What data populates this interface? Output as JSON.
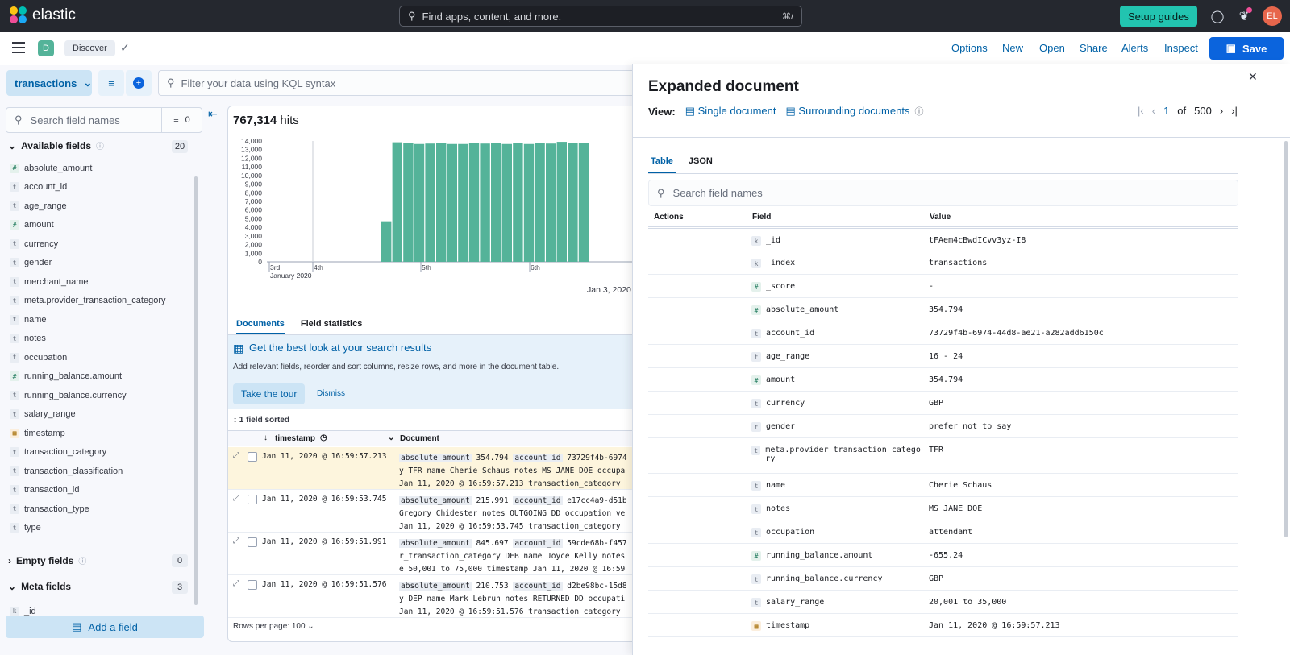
{
  "topbar": {
    "brand": "elastic",
    "search_placeholder": "Find apps, content, and more.",
    "search_shortcut": "⌘/",
    "setup_guides": "Setup guides",
    "avatar": "EL"
  },
  "appbar": {
    "space_badge": "D",
    "breadcrumb": "Discover",
    "menu": [
      "Options",
      "New",
      "Open",
      "Share",
      "Alerts",
      "Inspect"
    ],
    "save": "Save"
  },
  "query": {
    "data_view": "transactions",
    "kql_placeholder": "Filter your data using KQL syntax"
  },
  "sidebar": {
    "search_placeholder": "Search field names",
    "filter_count": "0",
    "available_label": "Available fields",
    "available_count": "20",
    "available_fields": [
      {
        "name": "absolute_amount",
        "type": "#"
      },
      {
        "name": "account_id",
        "type": "t"
      },
      {
        "name": "age_range",
        "type": "t"
      },
      {
        "name": "amount",
        "type": "#"
      },
      {
        "name": "currency",
        "type": "t"
      },
      {
        "name": "gender",
        "type": "t"
      },
      {
        "name": "merchant_name",
        "type": "t"
      },
      {
        "name": "meta.provider_transaction_category",
        "type": "t"
      },
      {
        "name": "name",
        "type": "t"
      },
      {
        "name": "notes",
        "type": "t"
      },
      {
        "name": "occupation",
        "type": "t"
      },
      {
        "name": "running_balance.amount",
        "type": "#"
      },
      {
        "name": "running_balance.currency",
        "type": "t"
      },
      {
        "name": "salary_range",
        "type": "t"
      },
      {
        "name": "timestamp",
        "type": "date"
      },
      {
        "name": "transaction_category",
        "type": "t"
      },
      {
        "name": "transaction_classification",
        "type": "t"
      },
      {
        "name": "transaction_id",
        "type": "t"
      },
      {
        "name": "transaction_type",
        "type": "t"
      },
      {
        "name": "type",
        "type": "t"
      }
    ],
    "empty_label": "Empty fields",
    "empty_count": "0",
    "meta_label": "Meta fields",
    "meta_count": "3",
    "meta_first": "_id",
    "add_field": "Add a field"
  },
  "results": {
    "hits": "767,314",
    "hits_label": "hits",
    "tab_documents": "Documents",
    "tab_stats": "Field statistics",
    "callout_title": "Get the best look at your search results",
    "callout_desc": "Add relevant fields, reorder and sort columns, resize rows, and more in the document table.",
    "take_tour": "Take the tour",
    "dismiss": "Dismiss",
    "sorted": "1 field sorted",
    "col_timestamp": "timestamp",
    "col_document": "Document",
    "rows": [
      {
        "ts": "Jan 11, 2020 @ 16:59:57.213",
        "l1": [
          [
            "absolute_amount",
            "354.794"
          ],
          [
            "account_id",
            "73729f4b-6974"
          ]
        ],
        "l2": "y TFR name Cherie Schaus notes MS JANE DOE occupa",
        "l3": "Jan 11, 2020 @ 16:59:57.213 transaction_category"
      },
      {
        "ts": "Jan 11, 2020 @ 16:59:53.745",
        "l1": [
          [
            "absolute_amount",
            "215.991"
          ],
          [
            "account_id",
            "e17cc4a9-d51b"
          ]
        ],
        "l2": "Gregory Chidester notes OUTGOING DD occupation ve",
        "l3": "Jan 11, 2020 @ 16:59:53.745 transaction_category"
      },
      {
        "ts": "Jan 11, 2020 @ 16:59:51.991",
        "l1": [
          [
            "absolute_amount",
            "845.697"
          ],
          [
            "account_id",
            "59cde68b-f457"
          ]
        ],
        "l2": "r_transaction_category DEB name Joyce Kelly notes",
        "l3": "e 50,001 to 75,000 timestamp Jan 11, 2020 @ 16:59"
      },
      {
        "ts": "Jan 11, 2020 @ 16:59:51.576",
        "l1": [
          [
            "absolute_amount",
            "210.753"
          ],
          [
            "account_id",
            "d2be98bc-15d8"
          ]
        ],
        "l2": "y DEP name Mark Lebrun notes RETURNED DD occupati",
        "l3": "Jan 11, 2020 @ 16:59:51.576 transaction_category"
      }
    ],
    "rows_per_page": "Rows per page: 100"
  },
  "chart_data": {
    "type": "bar",
    "title": "",
    "xlabel": "Jan 3, 2020",
    "ylabel": "",
    "ylim": [
      0,
      14000
    ],
    "y_ticks": [
      "14,000",
      "13,000",
      "12,000",
      "11,000",
      "10,000",
      "9,000",
      "8,000",
      "7,000",
      "6,000",
      "5,000",
      "4,000",
      "3,000",
      "2,000",
      "1,000",
      "0"
    ],
    "x_ticks": [
      "3rd",
      "4th",
      "5th",
      "6th"
    ],
    "x_sublabel": "January 2020",
    "values": [
      4700,
      13850,
      13800,
      13650,
      13700,
      13750,
      13650,
      13650,
      13750,
      13700,
      13800,
      13650,
      13750,
      13650,
      13750,
      13700,
      13900,
      13800,
      13750
    ],
    "color": "#54b399"
  },
  "flyout": {
    "title": "Expanded document",
    "view_label": "View:",
    "single": "Single document",
    "surrounding": "Surrounding documents",
    "page": "1",
    "of": "of",
    "total": "500",
    "tab_table": "Table",
    "tab_json": "JSON",
    "search_placeholder": "Search field names",
    "col_actions": "Actions",
    "col_field": "Field",
    "col_value": "Value",
    "rows": [
      {
        "field": "_id",
        "type": "k",
        "value": "tFAem4cBwdICvv3yz-I8"
      },
      {
        "field": "_index",
        "type": "k",
        "value": "transactions"
      },
      {
        "field": "_score",
        "type": "#",
        "value": " -"
      },
      {
        "field": "absolute_amount",
        "type": "#",
        "value": "354.794"
      },
      {
        "field": "account_id",
        "type": "t",
        "value": "73729f4b-6974-44d8-ae21-a282add6150c"
      },
      {
        "field": "age_range",
        "type": "t",
        "value": "16 - 24"
      },
      {
        "field": "amount",
        "type": "#",
        "value": "354.794"
      },
      {
        "field": "currency",
        "type": "t",
        "value": "GBP"
      },
      {
        "field": "gender",
        "type": "t",
        "value": "prefer not to say"
      },
      {
        "field": "meta.provider_transaction_category",
        "type": "t",
        "value": "TFR"
      },
      {
        "field": "name",
        "type": "t",
        "value": "Cherie Schaus"
      },
      {
        "field": "notes",
        "type": "t",
        "value": "MS JANE DOE"
      },
      {
        "field": "occupation",
        "type": "t",
        "value": "attendant"
      },
      {
        "field": "running_balance.amount",
        "type": "#",
        "value": "-655.24"
      },
      {
        "field": "running_balance.currency",
        "type": "t",
        "value": "GBP"
      },
      {
        "field": "salary_range",
        "type": "t",
        "value": "20,001 to 35,000"
      },
      {
        "field": "timestamp",
        "type": "date",
        "value": "Jan 11, 2020 @ 16:59:57.213"
      }
    ]
  }
}
